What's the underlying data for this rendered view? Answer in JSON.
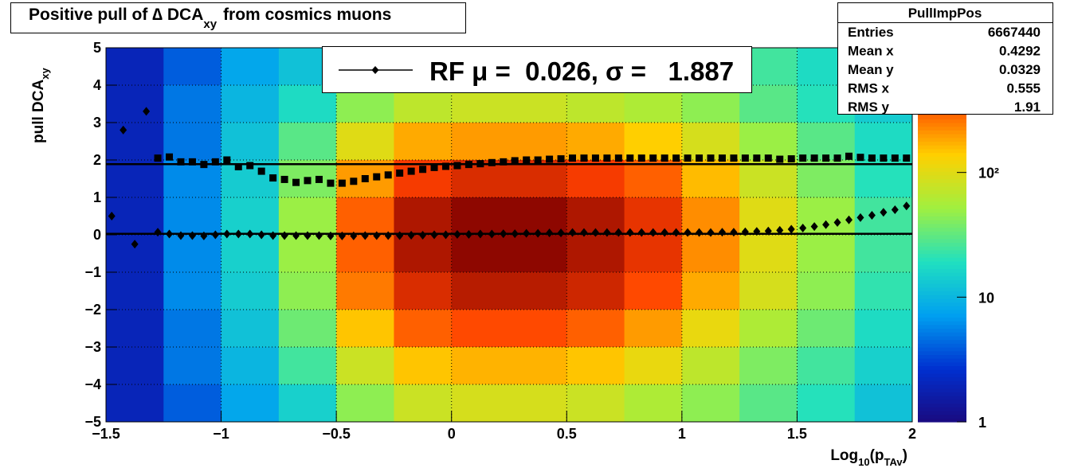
{
  "chart_data": {
    "type": "heatmap",
    "title_parts": [
      "Positive pull of ∆ DCA",
      "xy",
      "from cosmics muons"
    ],
    "xlabel_parts": [
      "Log",
      "10",
      "(p",
      "TAv",
      ")"
    ],
    "ylabel_parts": [
      "pull DCA",
      "xy"
    ],
    "xlim": [
      -1.5,
      2
    ],
    "ylim": [
      -5,
      5
    ],
    "xticks": [
      {
        "value": -1.5,
        "label": "−1.5"
      },
      {
        "value": -1,
        "label": "−1"
      },
      {
        "value": -0.5,
        "label": "−0.5"
      },
      0,
      0.5,
      1,
      1.5,
      2
    ],
    "yticks": [
      {
        "value": -5,
        "label": "−5"
      },
      {
        "value": -4,
        "label": "−4"
      },
      {
        "value": -3,
        "label": "−3"
      },
      {
        "value": -2,
        "label": "−2"
      },
      {
        "value": -1,
        "label": "−1"
      },
      0,
      1,
      2,
      3,
      4,
      5
    ],
    "grid": true,
    "zlim": [
      1,
      1000
    ],
    "zlog": true,
    "zticks": [
      1,
      10,
      {
        "value": 100,
        "label": "10²"
      }
    ],
    "palette": [
      "#1a0a80",
      "#0030d0",
      "#00a0f0",
      "#20e0c0",
      "#a0f040",
      "#ffd000",
      "#ff4000",
      "#800000"
    ],
    "xbins": [
      -1.5,
      -1.25,
      -1,
      -0.75,
      -0.5,
      -0.25,
      0,
      0.25,
      0.5,
      0.75,
      1,
      1.25,
      1.5,
      1.75,
      2
    ],
    "ybins": [
      5,
      4,
      3,
      2,
      1,
      0,
      -1,
      -2,
      -3,
      -4,
      -5
    ],
    "z": [
      [
        2,
        4,
        8,
        12,
        20,
        30,
        35,
        40,
        40,
        35,
        30,
        25,
        18,
        12
      ],
      [
        2,
        5,
        10,
        18,
        45,
        70,
        80,
        80,
        70,
        60,
        45,
        30,
        20,
        14
      ],
      [
        2,
        5,
        12,
        30,
        100,
        180,
        200,
        200,
        180,
        140,
        90,
        50,
        30,
        18
      ],
      [
        2,
        6,
        14,
        40,
        200,
        400,
        500,
        500,
        400,
        300,
        160,
        80,
        40,
        20
      ],
      [
        2,
        6,
        15,
        50,
        300,
        700,
        900,
        900,
        700,
        450,
        220,
        100,
        50,
        25
      ],
      [
        2,
        6,
        15,
        50,
        300,
        700,
        900,
        900,
        700,
        450,
        220,
        100,
        50,
        25
      ],
      [
        2,
        6,
        14,
        45,
        250,
        500,
        650,
        650,
        550,
        350,
        180,
        90,
        45,
        22
      ],
      [
        2,
        5,
        12,
        35,
        150,
        300,
        350,
        350,
        300,
        200,
        110,
        60,
        35,
        18
      ],
      [
        2,
        5,
        10,
        25,
        80,
        150,
        170,
        170,
        150,
        110,
        70,
        40,
        25,
        15
      ],
      [
        2,
        4,
        8,
        15,
        45,
        80,
        90,
        90,
        80,
        60,
        45,
        30,
        20,
        12
      ]
    ],
    "fit_lines": [
      0.026,
      1.887
    ],
    "series": [
      {
        "marker": "diamond",
        "color": "#000000",
        "x": [
          -1.475,
          -1.425,
          -1.375,
          -1.325,
          -1.275,
          -1.225,
          -1.175,
          -1.125,
          -1.075,
          -1.025,
          -0.975,
          -0.925,
          -0.875,
          -0.825,
          -0.775,
          -0.725,
          -0.675,
          -0.625,
          -0.575,
          -0.525,
          -0.475,
          -0.425,
          -0.375,
          -0.325,
          -0.275,
          -0.225,
          -0.175,
          -0.125,
          -0.075,
          -0.025,
          0.025,
          0.075,
          0.125,
          0.175,
          0.225,
          0.275,
          0.325,
          0.375,
          0.425,
          0.475,
          0.525,
          0.575,
          0.625,
          0.675,
          0.725,
          0.775,
          0.825,
          0.875,
          0.925,
          0.975,
          1.025,
          1.075,
          1.125,
          1.175,
          1.225,
          1.275,
          1.325,
          1.375,
          1.425,
          1.475,
          1.525,
          1.575,
          1.625,
          1.675,
          1.725,
          1.775,
          1.825,
          1.875,
          1.925,
          1.975
        ],
        "values": [
          0.5,
          2.8,
          -0.25,
          3.3,
          0.07,
          0.02,
          -0.02,
          -0.02,
          -0.03,
          0,
          0.02,
          0.02,
          0.02,
          0,
          -0.02,
          -0.02,
          -0.02,
          -0.02,
          -0.02,
          -0.03,
          -0.03,
          -0.03,
          -0.02,
          -0.02,
          -0.02,
          -0.02,
          -0.01,
          -0.01,
          0,
          0,
          0.01,
          0.01,
          0.02,
          0.02,
          0.03,
          0.03,
          0.04,
          0.04,
          0.05,
          0.05,
          0.06,
          0.06,
          0.06,
          0.06,
          0.06,
          0.06,
          0.06,
          0.06,
          0.06,
          0.06,
          0.06,
          0.06,
          0.06,
          0.07,
          0.07,
          0.08,
          0.09,
          0.1,
          0.12,
          0.15,
          0.18,
          0.22,
          0.27,
          0.33,
          0.4,
          0.46,
          0.52,
          0.6,
          0.67,
          0.77
        ]
      },
      {
        "marker": "square",
        "color": "#000000",
        "x": [
          -1.275,
          -1.225,
          -1.175,
          -1.125,
          -1.075,
          -1.025,
          -0.975,
          -0.925,
          -0.875,
          -0.825,
          -0.775,
          -0.725,
          -0.675,
          -0.625,
          -0.575,
          -0.525,
          -0.475,
          -0.425,
          -0.375,
          -0.325,
          -0.275,
          -0.225,
          -0.175,
          -0.125,
          -0.075,
          -0.025,
          0.025,
          0.075,
          0.125,
          0.175,
          0.225,
          0.275,
          0.325,
          0.375,
          0.425,
          0.475,
          0.525,
          0.575,
          0.625,
          0.675,
          0.725,
          0.775,
          0.825,
          0.875,
          0.925,
          0.975,
          1.025,
          1.075,
          1.125,
          1.175,
          1.225,
          1.275,
          1.325,
          1.375,
          1.425,
          1.475,
          1.525,
          1.575,
          1.625,
          1.675,
          1.725,
          1.775,
          1.825,
          1.875,
          1.925,
          1.975
        ],
        "values": [
          2.05,
          2.08,
          1.95,
          1.95,
          1.88,
          1.95,
          2,
          1.82,
          1.85,
          1.7,
          1.52,
          1.48,
          1.4,
          1.45,
          1.48,
          1.38,
          1.38,
          1.43,
          1.5,
          1.55,
          1.6,
          1.65,
          1.7,
          1.75,
          1.8,
          1.83,
          1.85,
          1.88,
          1.9,
          1.93,
          1.95,
          1.98,
          2,
          2,
          2.02,
          2.03,
          2.05,
          2.05,
          2.05,
          2.05,
          2.05,
          2.05,
          2.05,
          2.05,
          2.05,
          2.05,
          2.05,
          2.05,
          2.05,
          2.05,
          2.05,
          2.05,
          2.05,
          2.05,
          2.02,
          2.03,
          2.05,
          2.05,
          2.05,
          2.05,
          2.1,
          2.07,
          2.05,
          2.05,
          2.05,
          2.05
        ]
      }
    ],
    "legend_text": "RF μ =  0.026, σ =   1.887",
    "stats": {
      "title": "PullImpPos",
      "rows": [
        [
          "Entries",
          "6667440"
        ],
        [
          "Mean x",
          "0.4292"
        ],
        [
          "Mean y",
          "0.0329"
        ],
        [
          "RMS x",
          "0.555"
        ],
        [
          "RMS y",
          "1.91"
        ]
      ]
    }
  }
}
